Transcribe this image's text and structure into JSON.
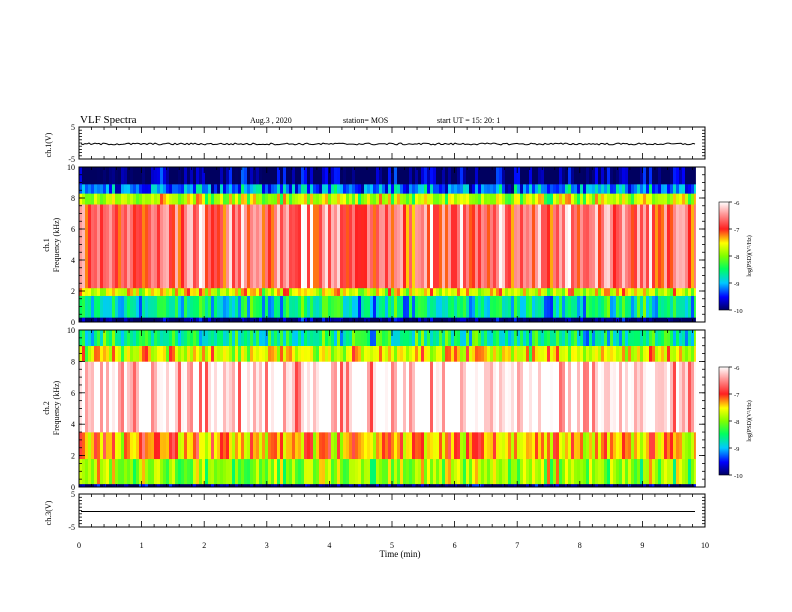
{
  "header": {
    "title": "VLF Spectra",
    "date": "Aug.3 , 2020",
    "station": "station= MOS",
    "start": "start UT = 15: 20: 1"
  },
  "chart_data": [
    {
      "type": "line",
      "ylabel": "ch.1(V)",
      "ylim": [
        -5,
        5
      ],
      "ytick_labels": [
        "5",
        "-5"
      ],
      "series": [
        {
          "values_level": -0.3
        }
      ]
    },
    {
      "type": "heatmap",
      "ylabel_line1": "ch.1",
      "ylabel_line2": "Frequency (kHz)",
      "ylim": [
        0,
        10
      ],
      "ytick_labels": [
        "0",
        "2",
        "4",
        "6",
        "8",
        "10"
      ],
      "colorbar": {
        "label": "log(PSD)(V²/Hz)",
        "ticks": [
          "-6",
          "-7",
          "-8",
          "-9",
          "-10"
        ],
        "range": [
          -10,
          -6
        ]
      },
      "bands": [
        {
          "from": 0.0,
          "to": 0.3,
          "level": -10
        },
        {
          "from": 0.3,
          "to": 1.7,
          "level": -8.7
        },
        {
          "from": 1.7,
          "to": 2.2,
          "level": -7.6
        },
        {
          "from": 2.2,
          "to": 7.6,
          "level": -6.7
        },
        {
          "from": 7.6,
          "to": 8.3,
          "level": -7.8
        },
        {
          "from": 8.3,
          "to": 8.9,
          "level": -9.2
        },
        {
          "from": 8.9,
          "to": 10.0,
          "level": -10
        }
      ]
    },
    {
      "type": "heatmap",
      "ylabel_line1": "ch.2",
      "ylabel_line2": "Frequency (kHz)",
      "ylim": [
        0,
        10
      ],
      "ytick_labels": [
        "0",
        "2",
        "4",
        "6",
        "8",
        "10"
      ],
      "colorbar": {
        "label": "log(PSD)(V²/Hz)",
        "ticks": [
          "-6",
          "-7",
          "-8",
          "-9",
          "-10"
        ],
        "range": [
          -10,
          -6
        ]
      },
      "bands": [
        {
          "from": 0.0,
          "to": 0.2,
          "level": -10
        },
        {
          "from": 0.2,
          "to": 1.8,
          "level": -7.9
        },
        {
          "from": 1.8,
          "to": 3.5,
          "level": -7.3
        },
        {
          "from": 3.5,
          "to": 8.0,
          "level": -6.1
        },
        {
          "from": 8.0,
          "to": 9.0,
          "level": -7.6
        },
        {
          "from": 9.0,
          "to": 10.0,
          "level": -8.6
        }
      ]
    },
    {
      "type": "line",
      "ylabel": "ch.3(V)",
      "ylim": [
        -5,
        5
      ],
      "ytick_labels": [
        "5",
        "-5"
      ],
      "series": [
        {
          "values_level": -0.3
        }
      ]
    }
  ],
  "xaxis": {
    "label": "Time (min)",
    "xlim": [
      0,
      10
    ],
    "tick_labels": [
      "0",
      "1",
      "2",
      "3",
      "4",
      "5",
      "6",
      "7",
      "8",
      "9",
      "10"
    ],
    "data_end": 9.85
  }
}
